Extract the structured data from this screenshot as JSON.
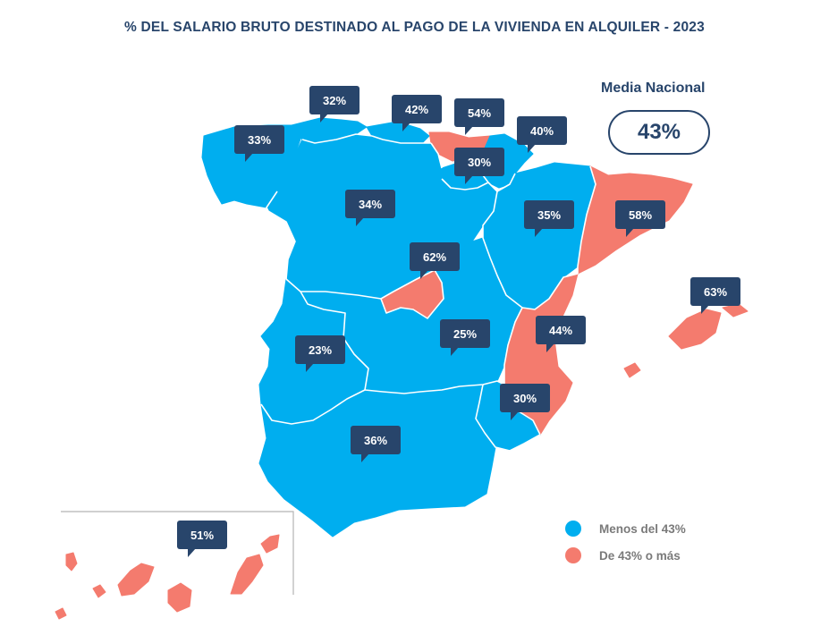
{
  "title": "% DEL SALARIO BRUTO DESTINADO AL PAGO DE LA VIVIENDA EN ALQUILER - 2023",
  "national_average": {
    "label": "Media Nacional",
    "value": "43%"
  },
  "legend": [
    {
      "label": "Menos del 43%",
      "color": "#00aeef"
    },
    {
      "label": "De 43% o más",
      "color": "#f47b6e"
    }
  ],
  "colors": {
    "below": "#00aeef",
    "above": "#f47b6e",
    "callout": "#28456b",
    "border": "#ffffff",
    "frame": "#b5b5b5"
  },
  "regions": [
    {
      "name": "Galicia",
      "value": "33%",
      "category": "below"
    },
    {
      "name": "Asturias",
      "value": "32%",
      "category": "below"
    },
    {
      "name": "Cantabria",
      "value": "42%",
      "category": "below"
    },
    {
      "name": "País Vasco",
      "value": "54%",
      "category": "above"
    },
    {
      "name": "Navarra",
      "value": "40%",
      "category": "below"
    },
    {
      "name": "La Rioja",
      "value": "30%",
      "category": "below"
    },
    {
      "name": "Castilla y León",
      "value": "34%",
      "category": "below"
    },
    {
      "name": "Aragón",
      "value": "35%",
      "category": "below"
    },
    {
      "name": "Cataluña",
      "value": "58%",
      "category": "above"
    },
    {
      "name": "Madrid",
      "value": "62%",
      "category": "above"
    },
    {
      "name": "Islas Baleares",
      "value": "63%",
      "category": "above"
    },
    {
      "name": "Castilla-La Mancha",
      "value": "25%",
      "category": "below"
    },
    {
      "name": "Comunidad Valenciana",
      "value": "44%",
      "category": "above"
    },
    {
      "name": "Extremadura",
      "value": "23%",
      "category": "below"
    },
    {
      "name": "Región de Murcia",
      "value": "30%",
      "category": "below"
    },
    {
      "name": "Andalucía",
      "value": "36%",
      "category": "below"
    },
    {
      "name": "Islas Canarias",
      "value": "51%",
      "category": "above"
    }
  ]
}
